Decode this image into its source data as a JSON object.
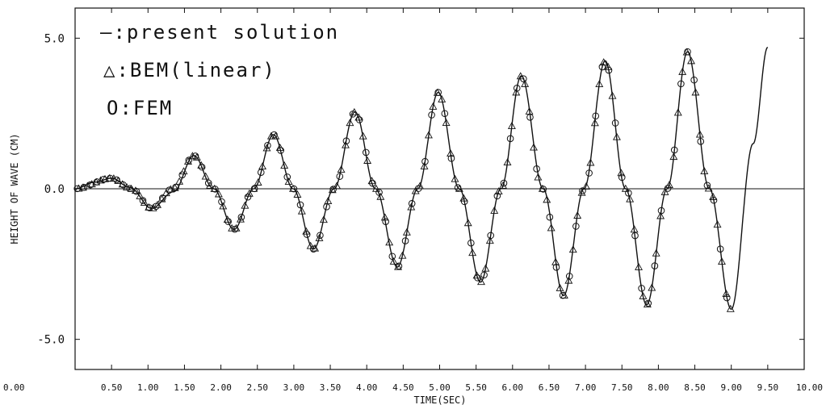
{
  "chart_data": {
    "type": "line",
    "title": "",
    "xlabel": "TIME(SEC)",
    "ylabel": "HEIGHT OF WAVE (CM)",
    "xlim": [
      0,
      10
    ],
    "ylim": [
      -6.0,
      6.0
    ],
    "x_ticks": [
      "0.00",
      "0.50",
      "1.00",
      "1.50",
      "2.00",
      "2.50",
      "3.00",
      "3.50",
      "4.00",
      "4.50",
      "5.00",
      "5.50",
      "6.00",
      "6.50",
      "7.00",
      "7.50",
      "8.00",
      "8.50",
      "9.00",
      "9.50",
      "10.00"
    ],
    "y_ticks": [
      "5.0",
      "0.0",
      "-5.0"
    ],
    "y_tick_values": [
      5.0,
      0.0,
      -5.0
    ],
    "zero_line": true,
    "grid": false,
    "legend_position": "top-left",
    "legend": [
      {
        "symbol": "line",
        "label": "—:present solution"
      },
      {
        "symbol": "triangle",
        "label": "△:BEM(linear)"
      },
      {
        "symbol": "circle",
        "label": "O:FEM"
      }
    ],
    "series": [
      {
        "name": "present solution",
        "style": "line",
        "x": [
          0.0,
          0.27,
          0.5,
          0.75,
          1.05,
          1.35,
          1.63,
          1.9,
          2.18,
          2.45,
          2.72,
          2.99,
          3.27,
          3.55,
          3.84,
          4.12,
          4.42,
          4.7,
          4.98,
          5.27,
          5.56,
          5.84,
          6.12,
          6.42,
          6.7,
          6.98,
          7.27,
          7.55,
          7.84,
          8.12,
          8.4,
          8.7,
          9.0,
          9.3,
          9.5
        ],
        "y": [
          0.0,
          0.22,
          0.35,
          0.05,
          -0.65,
          -0.1,
          1.1,
          0.0,
          -1.35,
          0.0,
          1.8,
          0.0,
          -2.0,
          0.0,
          2.55,
          0.0,
          -2.6,
          0.0,
          3.2,
          0.0,
          -3.1,
          0.0,
          3.75,
          0.0,
          -3.55,
          0.0,
          4.25,
          0.0,
          -3.85,
          0.0,
          4.55,
          0.0,
          -4.0,
          1.5,
          4.7
        ]
      },
      {
        "name": "BEM(linear)",
        "style": "triangle",
        "peaks": [
          {
            "t": 0.5,
            "y": 0.35
          },
          {
            "t": 1.05,
            "y": -0.65
          },
          {
            "t": 1.63,
            "y": 1.1
          },
          {
            "t": 2.18,
            "y": -1.35
          },
          {
            "t": 2.72,
            "y": 1.8
          },
          {
            "t": 3.27,
            "y": -2.0
          },
          {
            "t": 3.84,
            "y": 2.55
          },
          {
            "t": 4.42,
            "y": -2.6
          },
          {
            "t": 4.98,
            "y": 3.2
          },
          {
            "t": 5.56,
            "y": -3.1
          },
          {
            "t": 6.12,
            "y": 3.75
          },
          {
            "t": 6.7,
            "y": -3.55
          },
          {
            "t": 7.27,
            "y": 4.25
          },
          {
            "t": 7.84,
            "y": -3.85
          },
          {
            "t": 8.4,
            "y": 4.55
          },
          {
            "t": 9.0,
            "y": -4.0
          }
        ],
        "x_range": [
          0.05,
          9.0
        ],
        "step": 0.06
      },
      {
        "name": "FEM",
        "style": "circle",
        "peaks": [
          {
            "t": 0.5,
            "y": 0.35
          },
          {
            "t": 1.05,
            "y": -0.65
          },
          {
            "t": 1.63,
            "y": 1.1
          },
          {
            "t": 2.18,
            "y": -1.35
          },
          {
            "t": 2.72,
            "y": 1.8
          },
          {
            "t": 3.27,
            "y": -2.0
          },
          {
            "t": 3.84,
            "y": 2.55
          },
          {
            "t": 4.42,
            "y": -2.6
          },
          {
            "t": 4.98,
            "y": 3.2
          },
          {
            "t": 5.56,
            "y": -3.1
          },
          {
            "t": 6.12,
            "y": 3.75
          },
          {
            "t": 6.7,
            "y": -3.55
          },
          {
            "t": 7.27,
            "y": 4.25
          },
          {
            "t": 7.84,
            "y": -3.85
          },
          {
            "t": 8.4,
            "y": 4.55
          },
          {
            "t": 9.0,
            "y": -4.0
          }
        ],
        "x_range": [
          0.03,
          8.97
        ],
        "step": 0.09
      }
    ]
  }
}
